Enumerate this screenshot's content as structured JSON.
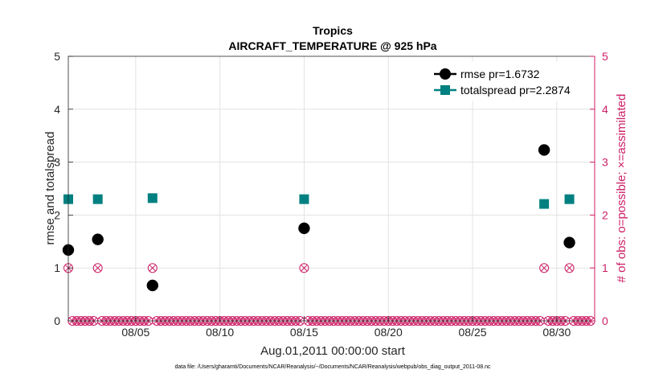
{
  "chart_data": {
    "type": "scatter",
    "title": "Tropics",
    "subtitle": "AIRCRAFT_TEMPERATURE @ 925 hPa",
    "xlabel": "Aug.01,2011 00:00:00 start",
    "ylabel": "rmse and totalspread",
    "ylabel_right": "# of obs: o=possible; ×=assimilated",
    "footer": "data file: /Users/gharamti/Documents/NCAR/Reanalysis/~/Documents/NCAR/Reanalysis/webpub/obs_diag_output_2011-08.nc",
    "xlim": [
      1.0,
      32.25
    ],
    "ylim": [
      0,
      5
    ],
    "ylim_right": [
      0,
      5
    ],
    "x_ticks": [
      5,
      10,
      15,
      20,
      25,
      30
    ],
    "x_tick_labels": [
      "08/05",
      "08/10",
      "08/15",
      "08/20",
      "08/25",
      "08/30"
    ],
    "y_ticks": [
      0,
      1,
      2,
      3,
      4,
      5
    ],
    "y_tick_labels": [
      "0",
      "1",
      "2",
      "3",
      "4",
      "5"
    ],
    "y_right_ticks": [
      0,
      1,
      2,
      3,
      4,
      5
    ],
    "y_right_tick_labels": [
      "0",
      "1",
      "2",
      "3",
      "4",
      "5"
    ],
    "grid": true,
    "legend_position": "top-right",
    "series": [
      {
        "name": "rmse pr=1.6732",
        "color": "#000000",
        "marker": "circle",
        "x": [
          1.0,
          2.75,
          6.0,
          15.0,
          29.25,
          30.75
        ],
        "y": [
          1.34,
          1.54,
          0.67,
          1.75,
          3.23,
          1.48
        ]
      },
      {
        "name": "totalspread pr=2.2874",
        "color": "#008080",
        "marker": "square",
        "x": [
          1.0,
          2.75,
          6.0,
          15.0,
          29.25,
          30.75
        ],
        "y": [
          2.3,
          2.3,
          2.32,
          2.3,
          2.21,
          2.3
        ]
      }
    ],
    "obs_count": {
      "color": "#cc1f66",
      "nonzero_x": [
        1.0,
        2.75,
        6.0,
        15.0,
        29.25,
        30.75
      ],
      "nonzero_value": 1,
      "zero_x_start": 1.25,
      "zero_x_end": 32.0,
      "zero_x_step": 0.25,
      "zero_value": 0
    }
  }
}
